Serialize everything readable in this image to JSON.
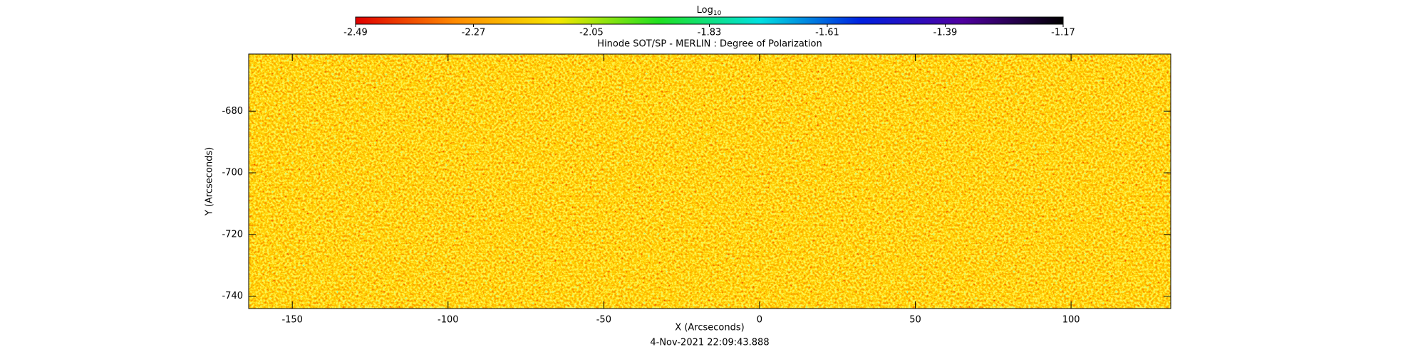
{
  "chart_data": {
    "type": "heatmap",
    "title": "Hinode SOT/SP - MERLIN : Degree of Polarization",
    "x_label": "X (Arcseconds)",
    "y_label": "Y (Arcseconds)",
    "footnote": "4-Nov-2021 22:09:43.888",
    "xlim": [
      -164,
      132
    ],
    "ylim": [
      -744,
      -661.5
    ],
    "xticks": [
      -150,
      -100,
      -50,
      0,
      50,
      100
    ],
    "yticks": [
      -740,
      -720,
      -700,
      -680
    ],
    "colorbar": {
      "label": "Log",
      "label_subscript": "10",
      "clim": [
        -2.49,
        -1.17
      ],
      "ticks": [
        -2.49,
        -2.27,
        -2.05,
        -1.83,
        -1.61,
        -1.39,
        -1.17
      ],
      "colors": [
        "#e00000",
        "#ff8c00",
        "#f5e600",
        "#20e020",
        "#00e0e0",
        "#0020e0",
        "#5000a0",
        "#000000"
      ]
    }
  }
}
